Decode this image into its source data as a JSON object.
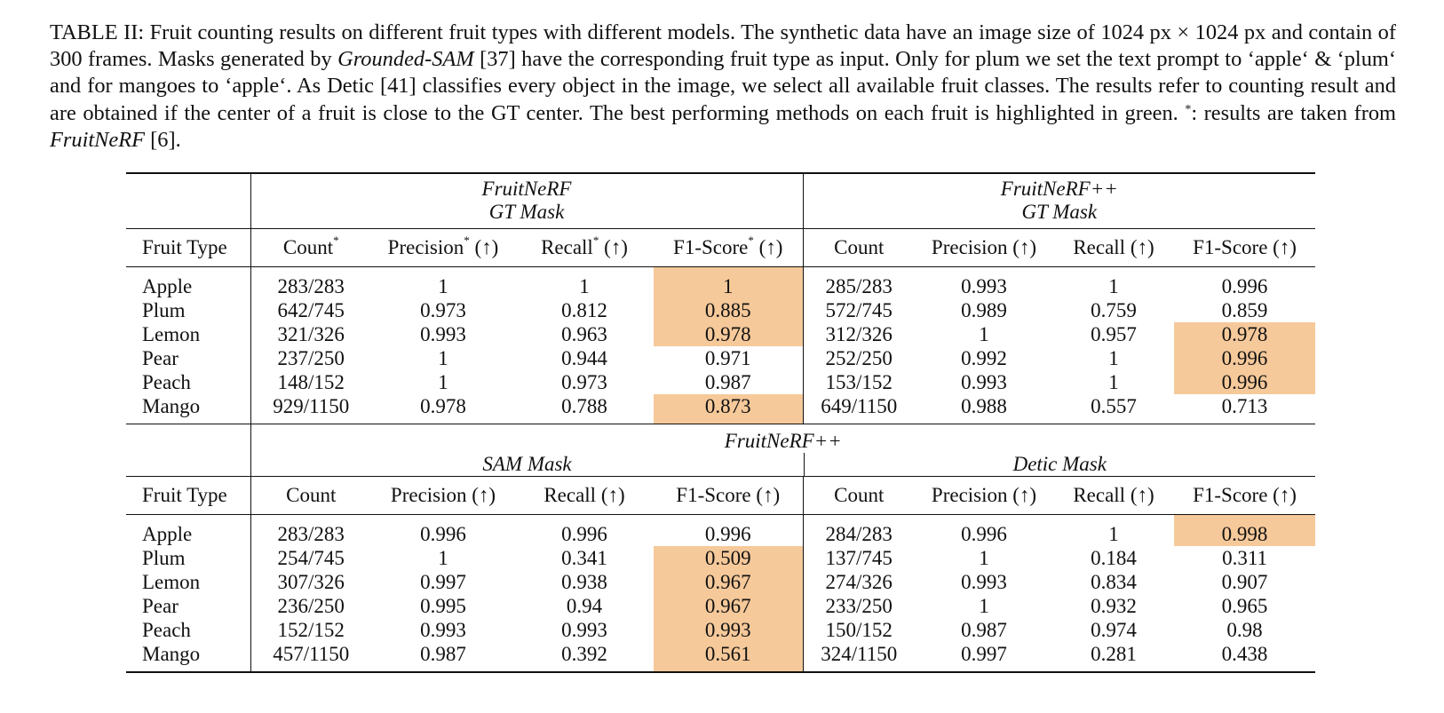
{
  "caption": {
    "part1": "TABLE II: Fruit counting results on different fruit types with different models. The synthetic data have an image size of 1024 px × 1024 px and contain of 300 frames. Masks generated by ",
    "grounded_sam": "Grounded-SAM",
    "part2": " [37] have the corresponding fruit type as input. Only for plum we set the text prompt to ‘apple‘ & ‘plum‘ and for mangoes to ‘apple‘. As Detic [41] classifies every object in the image, we select all available fruit classes. The results refer to counting result and are obtained if the center of a fruit is close to the GT center. The best performing methods on each fruit is highlighted in green. ",
    "asterisk": "*",
    "part3": ": results are taken from ",
    "fruitnerf": "FruitNeRF",
    "part4": " [6]."
  },
  "highlight_color": "#f6c99a",
  "table1": {
    "group_left_line1": "FruitNeRF",
    "group_left_line2": "GT Mask",
    "group_right_line1": "FruitNeRF++",
    "group_right_line2": "GT Mask",
    "headers": [
      "Fruit Type",
      "Count",
      "Precision",
      "(↑)",
      "Recall",
      "(↑)",
      "F1-Score",
      "(↑)",
      "Count",
      "Precision (↑)",
      "Recall (↑)",
      "F1-Score (↑)"
    ],
    "star": "*",
    "rows": [
      [
        "Apple",
        "283/283",
        "1",
        "1",
        "1",
        "285/283",
        "0.993",
        "1",
        "0.996"
      ],
      [
        "Plum",
        "642/745",
        "0.973",
        "0.812",
        "0.885",
        "572/745",
        "0.989",
        "0.759",
        "0.859"
      ],
      [
        "Lemon",
        "321/326",
        "0.993",
        "0.963",
        "0.978",
        "312/326",
        "1",
        "0.957",
        "0.978"
      ],
      [
        "Pear",
        "237/250",
        "1",
        "0.944",
        "0.971",
        "252/250",
        "0.992",
        "1",
        "0.996"
      ],
      [
        "Peach",
        "148/152",
        "1",
        "0.973",
        "0.987",
        "153/152",
        "0.993",
        "1",
        "0.996"
      ],
      [
        "Mango",
        "929/1150",
        "0.978",
        "0.788",
        "0.873",
        "649/1150",
        "0.988",
        "0.557",
        "0.713"
      ]
    ]
  },
  "table2": {
    "group_top": "FruitNeRF++",
    "group_left": "SAM Mask",
    "group_right": "Detic Mask",
    "headers": [
      "Fruit Type",
      "Count",
      "Precision (↑)",
      "Recall (↑)",
      "F1-Score (↑)",
      "Count",
      "Precision (↑)",
      "Recall (↑)",
      "F1-Score (↑)"
    ],
    "rows": [
      [
        "Apple",
        "283/283",
        "0.996",
        "0.996",
        "0.996",
        "284/283",
        "0.996",
        "1",
        "0.998"
      ],
      [
        "Plum",
        "254/745",
        "1",
        "0.341",
        "0.509",
        "137/745",
        "1",
        "0.184",
        "0.311"
      ],
      [
        "Lemon",
        "307/326",
        "0.997",
        "0.938",
        "0.967",
        "274/326",
        "0.993",
        "0.834",
        "0.907"
      ],
      [
        "Pear",
        "236/250",
        "0.995",
        "0.94",
        "0.967",
        "233/250",
        "1",
        "0.932",
        "0.965"
      ],
      [
        "Peach",
        "152/152",
        "0.993",
        "0.993",
        "0.993",
        "150/152",
        "0.987",
        "0.974",
        "0.98"
      ],
      [
        "Mango",
        "457/1150",
        "0.987",
        "0.392",
        "0.561",
        "324/1150",
        "0.997",
        "0.281",
        "0.438"
      ]
    ]
  }
}
